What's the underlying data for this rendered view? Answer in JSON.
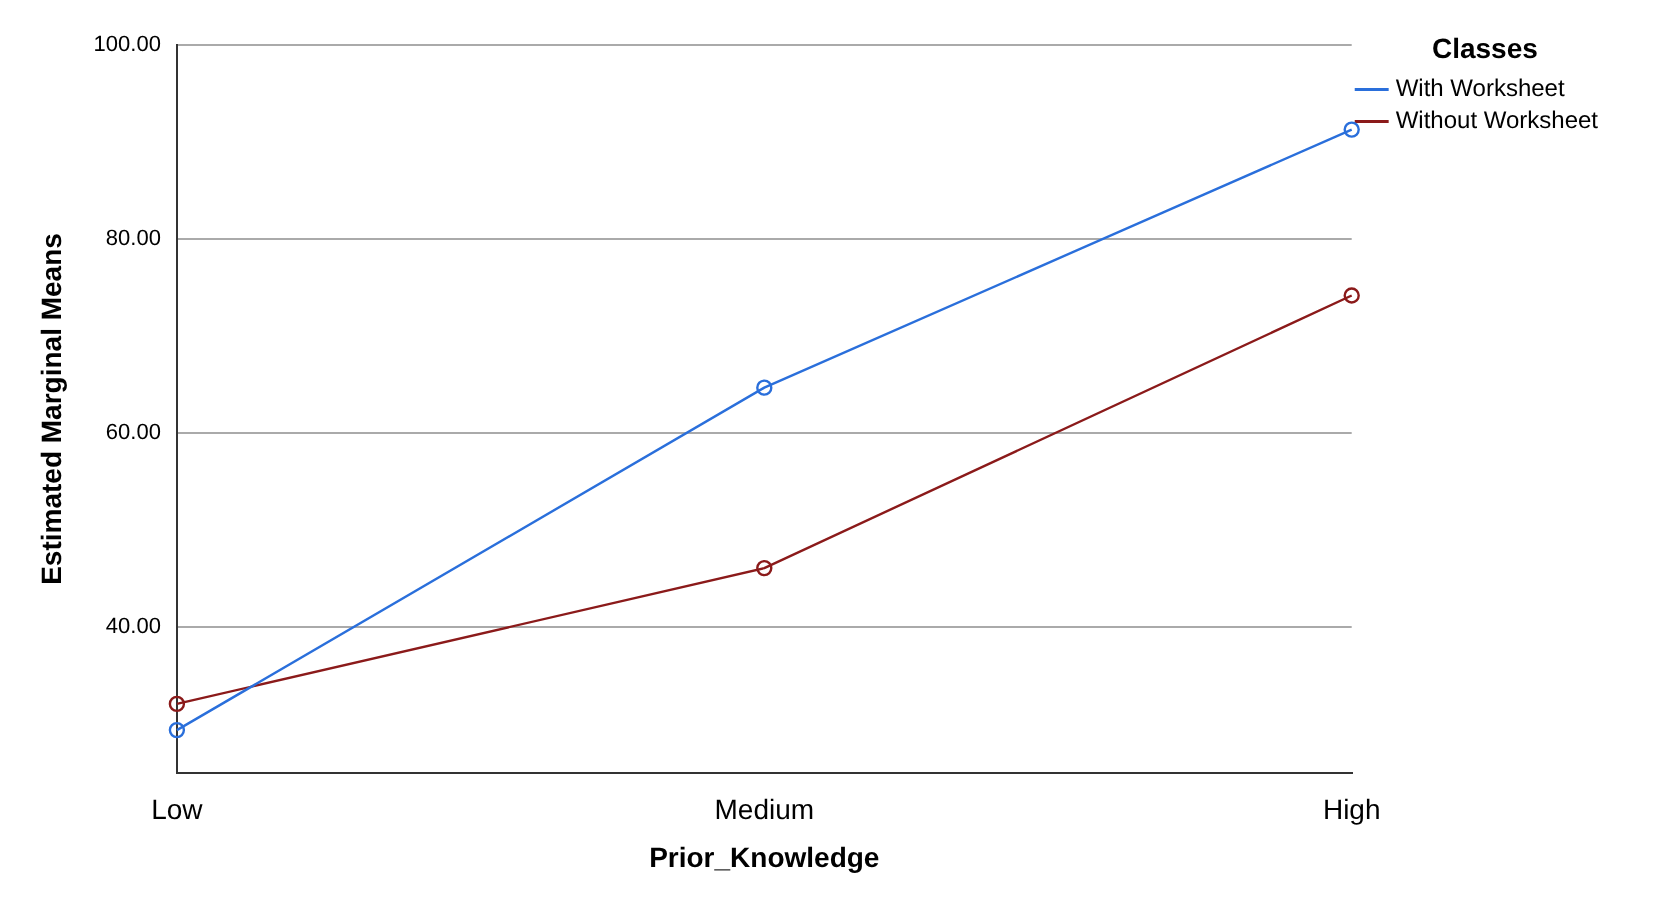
{
  "chart_data": {
    "type": "line",
    "xlabel": "Prior_Knowledge",
    "ylabel": "Estimated Marginal Means",
    "legend_title": "Classes",
    "legend": "top right",
    "categories": [
      "Low",
      "Medium",
      "High"
    ],
    "series": [
      {
        "name": "With Worksheet",
        "color": "#2a6fdb",
        "values": [
          29.4,
          64.7,
          91.3
        ]
      },
      {
        "name": "Without Worksheet",
        "color": "#8b1a1a",
        "values": [
          32.1,
          46.1,
          74.2
        ]
      }
    ],
    "ylim": [
      25,
      100
    ],
    "yticks": [
      {
        "value": 40,
        "label": "40.00"
      },
      {
        "value": 60,
        "label": "60.00"
      },
      {
        "value": 80,
        "label": "80.00"
      },
      {
        "value": 100,
        "label": "100.00"
      }
    ],
    "grid": "y",
    "marker": "circle",
    "line_style": "solid"
  }
}
